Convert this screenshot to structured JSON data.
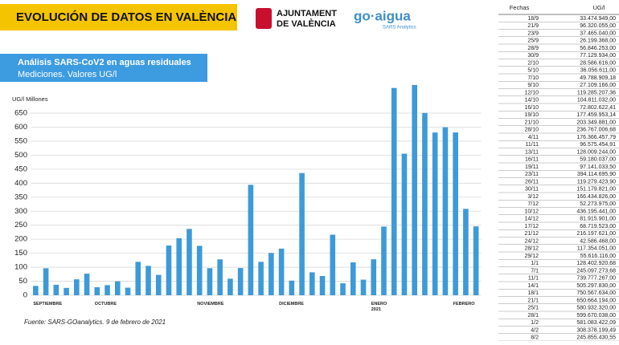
{
  "header": {
    "title": "EVOLUCIÓN DE DATOS EN VALÈNCIA",
    "logo1_line1": "AJUNTAMENT",
    "logo1_line2": "DE VALÈNCIA",
    "logo2": "go·aigua",
    "logo2_sub": "SARS Analytics"
  },
  "panel": {
    "line1": "Análisis SARS-CoV2 en aguas residuales",
    "line2": "Mediciones. Valores UG/l"
  },
  "source": "Fuente: SARS-GOanalytics. 9 de febrero de 2021",
  "chart_data": {
    "type": "bar",
    "y_label": "UG/l Millones",
    "color": "#3d9ad8",
    "grid": true,
    "categories": [
      "SEPTIEMBRE",
      null,
      null,
      null,
      null,
      null,
      "OCTUBRE",
      null,
      null,
      null,
      null,
      null,
      null,
      null,
      null,
      null,
      "NOVIEMBRE",
      null,
      null,
      null,
      null,
      null,
      null,
      null,
      "DICIEMBRE",
      null,
      null,
      null,
      null,
      null,
      null,
      null,
      null,
      "ENERO 2021",
      null,
      null,
      null,
      null,
      null,
      null,
      null,
      "FEBRERO",
      null,
      null
    ],
    "values": [
      33.47,
      96.32,
      37.47,
      26.2,
      56.85,
      77.13,
      28.59,
      36.06,
      49.79,
      27.11,
      119.29,
      104.81,
      72.8,
      177.46,
      203.35,
      236.77,
      176.37,
      96.58,
      128.01,
      59.18,
      97.14,
      394.11,
      119.28,
      151.18,
      166.43,
      52.27,
      436.2,
      81.92,
      68.72,
      216.2,
      42.59,
      117.35,
      55.62,
      128.4,
      245.1,
      739.78,
      505.3,
      750.57,
      650.66,
      580.93,
      599.67,
      581.08,
      308.38,
      245.86
    ],
    "ylim": [
      0,
      760
    ],
    "yticks": [
      0,
      50,
      100,
      150,
      200,
      250,
      300,
      350,
      400,
      450,
      500,
      550,
      600,
      650
    ]
  },
  "table": {
    "columns": [
      "Fechas",
      "UG/l"
    ],
    "rows": [
      [
        "18/9",
        "33.474.949,00"
      ],
      [
        "21/9",
        "96.320.055,00"
      ],
      [
        "23/9",
        "37.465.040,00"
      ],
      [
        "25/9",
        "26.199.368,00"
      ],
      [
        "28/9",
        "56.846.253,00"
      ],
      [
        "30/9",
        "77.129.934,00"
      ],
      [
        "2/10",
        "28.586.616,00"
      ],
      [
        "5/10",
        "36.056.611,00"
      ],
      [
        "7/10",
        "49.788.909,18"
      ],
      [
        "9/10",
        "27.109.166,00"
      ],
      [
        "12/10",
        "119.285.207,36"
      ],
      [
        "14/10",
        "104.811.032,00"
      ],
      [
        "16/10",
        "72.802.622,41"
      ],
      [
        "19/10",
        "177.459.953,14"
      ],
      [
        "21/10",
        "203.349.881,00"
      ],
      [
        "28/10",
        "236.767.006,68"
      ],
      [
        "4/11",
        "176.366.457,79"
      ],
      [
        "11/11",
        "96.575.454,91"
      ],
      [
        "13/11",
        "128.009.244,00"
      ],
      [
        "16/11",
        "59.180.037,00"
      ],
      [
        "19/11",
        "97.141.033,50"
      ],
      [
        "23/11",
        "394.114.695,90"
      ],
      [
        "26/11",
        "119.279.423,90"
      ],
      [
        "30/11",
        "151.179.821,00"
      ],
      [
        "3/12",
        "166.434.826,00"
      ],
      [
        "7/12",
        "52.273.975,00"
      ],
      [
        "10/12",
        "436.195.441,00"
      ],
      [
        "14/12",
        "81.915.901,00"
      ],
      [
        "17/12",
        "68.719.523,00"
      ],
      [
        "21/12",
        "216.197.621,00"
      ],
      [
        "24/12",
        "42.586.468,00"
      ],
      [
        "28/12",
        "117.354.051,00"
      ],
      [
        "29/12",
        "55.616.116,00"
      ],
      [
        "1/1",
        "128.402.920,68"
      ],
      [
        "7/1",
        "245.097.273,68"
      ],
      [
        "11/1",
        "739.777.267,00"
      ],
      [
        "14/1",
        "505.297.830,00"
      ],
      [
        "18/1",
        "750.567.634,00"
      ],
      [
        "21/1",
        "650.664.194,00"
      ],
      [
        "25/1",
        "580.932.320,00"
      ],
      [
        "28/1",
        "599.670.038,00"
      ],
      [
        "1/2",
        "581.083.422,09"
      ],
      [
        "4/2",
        "308.378.199,49"
      ],
      [
        "8/2",
        "245.855.430,55"
      ]
    ]
  }
}
